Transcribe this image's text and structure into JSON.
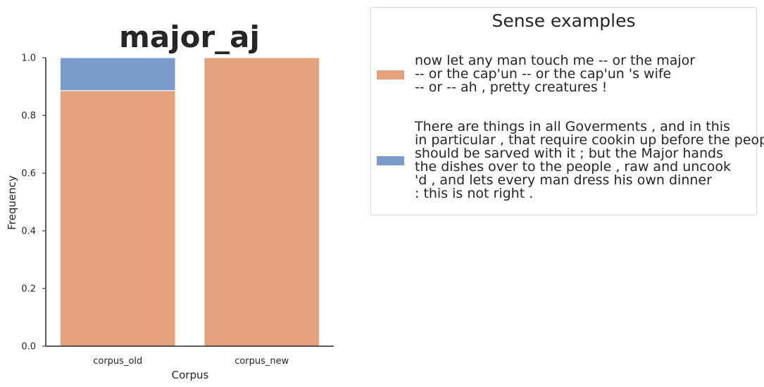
{
  "chart_data": {
    "type": "bar",
    "stacked": true,
    "title": "major_aj",
    "xlabel": "Corpus",
    "ylabel": "Frequency",
    "ylim": [
      0,
      1
    ],
    "yticks": [
      "0.0",
      "0.2",
      "0.4",
      "0.6",
      "0.8",
      "1.0"
    ],
    "categories": [
      "corpus_old",
      "corpus_new"
    ],
    "series": [
      {
        "color": "#e4a27c",
        "values": [
          0.886,
          1.0
        ]
      },
      {
        "color": "#7a9bcb",
        "values": [
          0.114,
          0.0
        ]
      }
    ],
    "legend": {
      "title": "Sense examples",
      "placement": "outside-right",
      "entries": [
        {
          "color": "#e4a27c",
          "lines": [
            "now let any man touch me -- or the major",
            "-- or the cap'un -- or the cap'un 's wife",
            "-- or -- ah , pretty creatures !"
          ]
        },
        {
          "color": "#7a9bcb",
          "lines": [
            "There are things in all Goverments , and in this",
            "in particular , that require cookin up before the people",
            "should be sarved with it ; but the Major hands",
            "the dishes over to the people , raw and uncook",
            "'d , and lets every man dress his own dinner",
            ": this is not right ."
          ]
        }
      ]
    }
  }
}
